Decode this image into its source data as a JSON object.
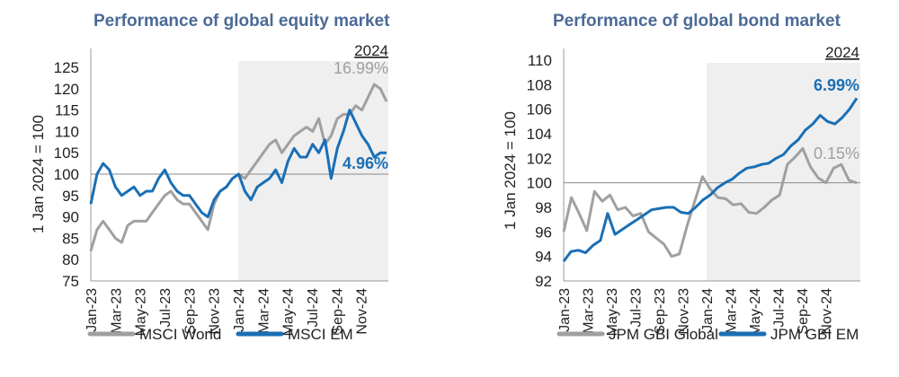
{
  "chart_data": [
    {
      "type": "line",
      "title": "Performance of global equity market",
      "ylabel": "1 Jan 2024 = 100",
      "xlabel": "",
      "ylim": [
        75,
        125
      ],
      "yticks": [
        "75",
        "80",
        "85",
        "90",
        "95",
        "100",
        "105",
        "110",
        "115",
        "120",
        "125"
      ],
      "xticks": [
        "Jan-23",
        "Mar-23",
        "May-23",
        "Jul-23",
        "Sep-23",
        "Nov-23",
        "Jan-24",
        "Mar-24",
        "May-24",
        "Jul-24",
        "Sep-24",
        "Nov-24"
      ],
      "reference_line": 100,
      "highlight_label": "2024",
      "highlight_period": [
        "Jan-24",
        "Dec-24"
      ],
      "x_period": [
        "Jan-23",
        "Dec-24"
      ],
      "legend": "bottom",
      "series": [
        {
          "name": "MSCI World",
          "color": "#a0a0a0",
          "end_label": "16.99%",
          "values": [
            82,
            87,
            89,
            87,
            85,
            84,
            88,
            89,
            89,
            89,
            91,
            93,
            95,
            96,
            94,
            93,
            93,
            91,
            89,
            87,
            93,
            96,
            97,
            99,
            100,
            99,
            101,
            103,
            105,
            107,
            108,
            105,
            107,
            109,
            110,
            111,
            110,
            113,
            107,
            109,
            113,
            114,
            114,
            116,
            115,
            118,
            121,
            120,
            117
          ]
        },
        {
          "name": "MSCI EM",
          "color": "#1a6fb5",
          "end_label": "4.96%",
          "values": [
            93,
            100,
            102.5,
            101,
            97,
            95,
            96,
            97,
            95,
            96,
            96,
            99,
            101,
            98,
            96,
            95,
            95,
            93,
            91,
            90,
            94,
            96,
            97,
            99,
            100,
            96,
            94,
            97,
            98,
            99,
            101,
            98,
            103,
            106,
            104,
            104,
            107,
            105,
            108,
            99,
            106,
            110,
            115,
            112,
            109,
            107,
            104,
            105,
            105
          ]
        }
      ]
    },
    {
      "type": "line",
      "title": "Performance of global bond market",
      "ylabel": "1 Jan 2024 = 100",
      "xlabel": "",
      "ylim": [
        92,
        110
      ],
      "yticks": [
        "92",
        "94",
        "96",
        "98",
        "100",
        "102",
        "104",
        "106",
        "108",
        "110"
      ],
      "xticks": [
        "Jan-23",
        "Mar-23",
        "May-23",
        "Jul-23",
        "Sep-23",
        "Nov-23",
        "Jan-24",
        "Mar-24",
        "May-24",
        "Jul-24",
        "Sep-24",
        "Nov-24"
      ],
      "reference_line": 100,
      "highlight_label": "2024",
      "highlight_period": [
        "Jan-24",
        "Dec-24"
      ],
      "x_period": [
        "Jan-23",
        "Dec-24"
      ],
      "legend": "bottom",
      "series": [
        {
          "name": "JPM GBI Global",
          "color": "#a0a0a0",
          "end_label": "0.15%",
          "values": [
            96,
            98.8,
            97.5,
            96.1,
            99.3,
            98.5,
            99,
            97.8,
            98,
            97.3,
            97.5,
            96,
            95.5,
            95,
            94,
            94.2,
            96.5,
            98.5,
            100.5,
            99.5,
            98.8,
            98.7,
            98.2,
            98.3,
            97.6,
            97.5,
            98,
            98.6,
            99,
            101.5,
            102.1,
            102.8,
            101.3,
            100.4,
            100,
            101.2,
            101.5,
            100.2,
            100
          ]
        },
        {
          "name": "JPM GBI EM",
          "color": "#1a6fb5",
          "end_label": "6.99%",
          "values": [
            93.6,
            94.4,
            94.5,
            94.3,
            94.9,
            95.3,
            97.5,
            95.8,
            96.2,
            96.6,
            97,
            97.4,
            97.8,
            97.9,
            98,
            98,
            97.6,
            97.5,
            98,
            98.6,
            99,
            99.6,
            100,
            100.3,
            100.8,
            101.2,
            101.3,
            101.5,
            101.6,
            102,
            102.3,
            103,
            103.5,
            104.3,
            104.8,
            105.5,
            105,
            104.8,
            105.3,
            106,
            106.9
          ]
        }
      ]
    }
  ]
}
